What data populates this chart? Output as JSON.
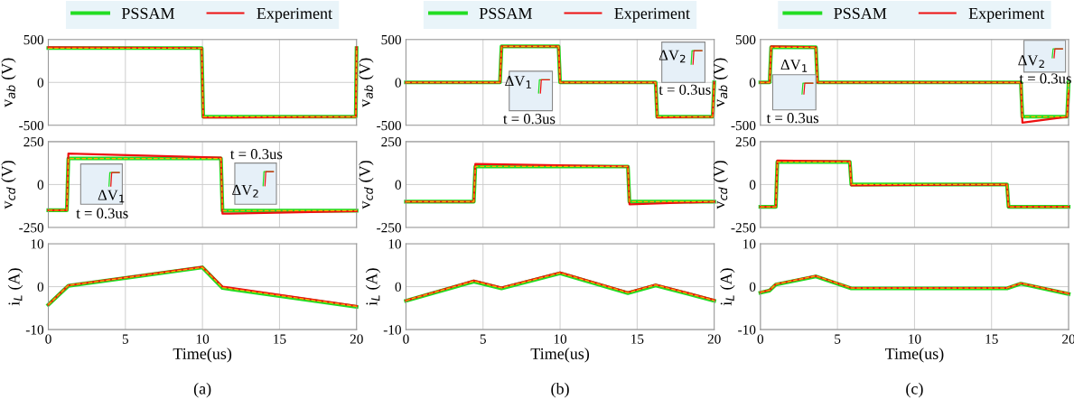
{
  "chart_data": [
    {
      "type": "line",
      "ylabel": "v$_{ab}$ (V)",
      "x": [
        0,
        9.95,
        10.05,
        19.95,
        20
      ],
      "xlim": [
        0,
        20
      ],
      "xticks": [
        0,
        5,
        10,
        15,
        20
      ],
      "ylim": [
        -500,
        500
      ],
      "yticks": [
        -500,
        0,
        500
      ],
      "tick_labels": "y",
      "grid": true,
      "legend": "top",
      "line_style": "solid",
      "series": [
        {
          "color": "#ffb000",
          "line_style": "dashed",
          "values": [
            400,
            400,
            -400,
            -400,
            400
          ]
        },
        {
          "name": "PSSAM",
          "color": "#22dd22",
          "values": [
            400,
            400,
            -400,
            -400,
            400
          ]
        },
        {
          "name": "Experiment",
          "color": "#ee1111",
          "values": [
            410,
            400,
            -410,
            -400,
            410
          ]
        }
      ]
    },
    {
      "type": "line",
      "ylabel": "v$_{ab}$ (V)",
      "x": [
        0,
        6.1,
        6.2,
        9.9,
        10,
        16.2,
        16.3,
        19.9,
        20
      ],
      "xlim": [
        0,
        20
      ],
      "xticks": [
        0,
        5,
        10,
        15,
        20
      ],
      "ylim": [
        -500,
        500
      ],
      "yticks": [
        -500,
        0,
        500
      ],
      "tick_labels": "y",
      "grid": true,
      "legend": "top",
      "line_style": "solid",
      "annotations": [
        "ΔV$_{1}$",
        "t = 0.3us",
        "ΔV$_{2}$",
        "t = 0.3us"
      ],
      "series": [
        {
          "color": "#ffb000",
          "line_style": "dashed",
          "values": [
            0,
            0,
            420,
            420,
            0,
            0,
            -400,
            -400,
            0
          ]
        },
        {
          "name": "PSSAM",
          "color": "#22dd22",
          "values": [
            0,
            0,
            420,
            420,
            0,
            0,
            -400,
            -400,
            0
          ]
        },
        {
          "name": "Experiment",
          "color": "#ee1111",
          "values": [
            0,
            0,
            420,
            420,
            0,
            0,
            -410,
            -400,
            0
          ]
        }
      ]
    },
    {
      "type": "line",
      "ylabel": "v$_{ab}$ (V)",
      "x": [
        0,
        0.6,
        0.7,
        3.6,
        3.7,
        16.9,
        17,
        19.9,
        20
      ],
      "xlim": [
        0,
        20
      ],
      "xticks": [
        0,
        5,
        10,
        15,
        20
      ],
      "ylim": [
        -500,
        500
      ],
      "yticks": [
        -500,
        0,
        500
      ],
      "tick_labels": "y",
      "grid": true,
      "legend": "top",
      "line_style": "solid",
      "annotations": [
        "ΔV$_{1}$",
        "t = 0.3us",
        "ΔV$_{2}$",
        "t = 0.3us"
      ],
      "series": [
        {
          "color": "#ffb000",
          "line_style": "dashed",
          "values": [
            0,
            0,
            410,
            410,
            0,
            0,
            -400,
            -400,
            0
          ]
        },
        {
          "name": "PSSAM",
          "color": "#22dd22",
          "values": [
            0,
            0,
            410,
            410,
            0,
            0,
            -400,
            -400,
            0
          ]
        },
        {
          "name": "Experiment",
          "color": "#ee1111",
          "values": [
            0,
            0,
            420,
            410,
            0,
            0,
            -470,
            -400,
            -100
          ]
        }
      ]
    },
    {
      "type": "line",
      "ylabel": "v$_{cd}$ (V)",
      "x": [
        0,
        1.2,
        1.3,
        11.2,
        11.3,
        20
      ],
      "xlim": [
        0,
        20
      ],
      "xticks": [
        0,
        5,
        10,
        15,
        20
      ],
      "ylim": [
        -250,
        250
      ],
      "yticks": [
        -250,
        0,
        250
      ],
      "tick_labels": "y",
      "grid": true,
      "line_style": "solid",
      "annotations": [
        "ΔV$_{1}$",
        "t = 0.3us",
        "ΔV$_{2}$",
        "t = 0.3us"
      ],
      "series": [
        {
          "color": "#ffb000",
          "line_style": "dashed",
          "values": [
            -150,
            -150,
            152,
            152,
            -152,
            -152
          ]
        },
        {
          "color": "#22dd22",
          "values": [
            -150,
            -150,
            152,
            152,
            -152,
            -152
          ]
        },
        {
          "color": "#ee1111",
          "values": [
            -150,
            -150,
            180,
            157,
            -170,
            -155
          ]
        }
      ]
    },
    {
      "type": "line",
      "ylabel": "v$_{cd}$ (V)",
      "x": [
        0,
        4.4,
        4.5,
        14.4,
        14.5,
        20
      ],
      "xlim": [
        0,
        20
      ],
      "xticks": [
        0,
        5,
        10,
        15,
        20
      ],
      "ylim": [
        -250,
        250
      ],
      "yticks": [
        -250,
        0,
        250
      ],
      "tick_labels": "y",
      "grid": true,
      "line_style": "solid",
      "series": [
        {
          "color": "#ffb000",
          "line_style": "dashed",
          "values": [
            -100,
            -100,
            105,
            105,
            -100,
            -100
          ]
        },
        {
          "color": "#22dd22",
          "values": [
            -100,
            -100,
            105,
            105,
            -100,
            -100
          ]
        },
        {
          "color": "#ee1111",
          "values": [
            -100,
            -100,
            120,
            105,
            -115,
            -100
          ]
        }
      ]
    },
    {
      "type": "line",
      "ylabel": "v$_{cd}$ (V)",
      "x": [
        0,
        1.0,
        1.1,
        5.8,
        5.9,
        16.0,
        16.1,
        20
      ],
      "xlim": [
        0,
        20
      ],
      "xticks": [
        0,
        5,
        10,
        15,
        20
      ],
      "ylim": [
        -250,
        250
      ],
      "yticks": [
        -250,
        0,
        250
      ],
      "tick_labels": "y",
      "grid": true,
      "line_style": "solid",
      "series": [
        {
          "color": "#ffb000",
          "line_style": "dashed",
          "values": [
            -130,
            -130,
            132,
            132,
            0,
            0,
            -130,
            -130
          ]
        },
        {
          "color": "#22dd22",
          "values": [
            -130,
            -130,
            132,
            132,
            0,
            0,
            -130,
            -130
          ]
        },
        {
          "color": "#ee1111",
          "values": [
            -130,
            -130,
            140,
            135,
            -5,
            0,
            -130,
            -130
          ]
        }
      ]
    },
    {
      "type": "line",
      "ylabel": "i$_{L}$ (A)",
      "xlabel": "Time(us)",
      "x": [
        0,
        1.3,
        10,
        11.3,
        20
      ],
      "xlim": [
        0,
        20
      ],
      "xticks": [
        0,
        5,
        10,
        15,
        20
      ],
      "ylim": [
        -10,
        10
      ],
      "yticks": [
        -10,
        0,
        10
      ],
      "grid": true,
      "line_style": "solid",
      "annotations": [
        "(a)"
      ],
      "series": [
        {
          "color": "#ffb000",
          "line_style": "dashed",
          "values": [
            -4.2,
            0.3,
            4.5,
            -0.2,
            -4.6
          ]
        },
        {
          "color": "#22dd22",
          "values": [
            -4.2,
            0.2,
            4.5,
            -0.3,
            -4.7
          ]
        },
        {
          "color": "#ee1111",
          "values": [
            -4.2,
            0.3,
            4.6,
            0,
            -4.5
          ]
        }
      ]
    },
    {
      "type": "line",
      "ylabel": "i$_{L}$ (A)",
      "xlabel": "Time(us)",
      "x": [
        0,
        4.4,
        6.2,
        10,
        14.4,
        16.2,
        20
      ],
      "xlim": [
        0,
        20
      ],
      "xticks": [
        0,
        5,
        10,
        15,
        20
      ],
      "ylim": [
        -10,
        10
      ],
      "yticks": [
        -10,
        0,
        10
      ],
      "grid": true,
      "line_style": "solid",
      "annotations": [
        "(b)"
      ],
      "series": [
        {
          "color": "#ffb000",
          "line_style": "dashed",
          "values": [
            -3.2,
            1.3,
            -0.3,
            3.2,
            -1.4,
            0.4,
            -3.2
          ]
        },
        {
          "color": "#22dd22",
          "values": [
            -3.3,
            1.2,
            -0.4,
            3.1,
            -1.5,
            0.3,
            -3.3
          ]
        },
        {
          "color": "#ee1111",
          "values": [
            -3.2,
            1.4,
            -0.2,
            3.3,
            -1.3,
            0.5,
            -3.1
          ]
        }
      ]
    },
    {
      "type": "line",
      "ylabel": "i$_{L}$ (A)",
      "xlabel": "Time(us)",
      "x": [
        0,
        0.6,
        1.0,
        3.6,
        5.9,
        16,
        16.9,
        20
      ],
      "xlim": [
        0,
        20
      ],
      "xticks": [
        0,
        5,
        10,
        15,
        20
      ],
      "ylim": [
        -10,
        10
      ],
      "yticks": [
        -10,
        0,
        10
      ],
      "grid": true,
      "line_style": "solid",
      "annotations": [
        "(c)"
      ],
      "series": [
        {
          "color": "#ffb000",
          "line_style": "dashed",
          "values": [
            -1.3,
            -0.8,
            0.6,
            2.5,
            -0.3,
            -0.3,
            0.8,
            -1.6
          ]
        },
        {
          "color": "#22dd22",
          "values": [
            -1.4,
            -0.9,
            0.5,
            2.4,
            -0.4,
            -0.4,
            0.7,
            -1.7
          ]
        },
        {
          "color": "#ee1111",
          "values": [
            -1.3,
            -0.8,
            0.6,
            2.5,
            -0.3,
            -0.3,
            0.8,
            -1.6
          ]
        }
      ]
    }
  ]
}
